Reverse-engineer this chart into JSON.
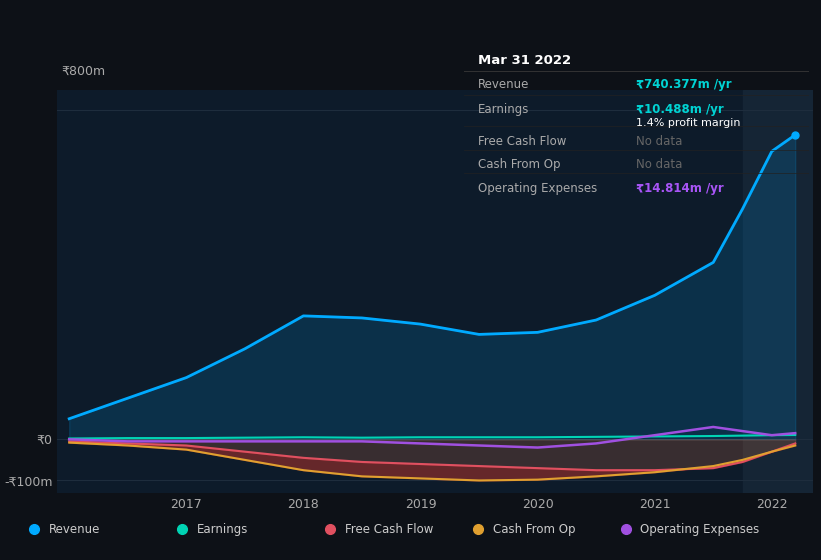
{
  "background_color": "#0d1117",
  "plot_bg_color": "#0d1b2a",
  "grid_color": "#1e2d3d",
  "title_box": {
    "date": "Mar 31 2022",
    "rows": [
      {
        "label": "Revenue",
        "value": "₹740.377m /yr",
        "value_color": "#00d4d4",
        "note": null
      },
      {
        "label": "Earnings",
        "value": "₹10.488m /yr",
        "value_color": "#00d4d4",
        "note": "1.4% profit margin"
      },
      {
        "label": "Free Cash Flow",
        "value": "No data",
        "value_color": "#666666",
        "note": null
      },
      {
        "label": "Cash From Op",
        "value": "No data",
        "value_color": "#666666",
        "note": null
      },
      {
        "label": "Operating Expenses",
        "value": "₹14.814m /yr",
        "value_color": "#a855f7",
        "note": null
      }
    ]
  },
  "x_years": [
    2016.0,
    2016.5,
    2017.0,
    2017.5,
    2018.0,
    2018.5,
    2019.0,
    2019.5,
    2020.0,
    2020.5,
    2021.0,
    2021.5,
    2021.75,
    2022.0,
    2022.2
  ],
  "revenue": [
    50,
    100,
    150,
    220,
    300,
    295,
    280,
    255,
    260,
    290,
    350,
    430,
    560,
    700,
    740
  ],
  "earnings": [
    2,
    3,
    3,
    4,
    5,
    4,
    5,
    5,
    5,
    6,
    7,
    8,
    9,
    10,
    10.5
  ],
  "free_cash_flow": [
    -5,
    -10,
    -15,
    -30,
    -45,
    -55,
    -60,
    -65,
    -70,
    -75,
    -75,
    -70,
    -55,
    -30,
    -10
  ],
  "cash_from_op": [
    -8,
    -15,
    -25,
    -50,
    -75,
    -90,
    -95,
    -100,
    -98,
    -90,
    -80,
    -65,
    -50,
    -30,
    -15
  ],
  "operating_expenses": [
    0,
    -5,
    -5,
    -5,
    -5,
    -5,
    -10,
    -15,
    -20,
    -10,
    10,
    30,
    20,
    10,
    15
  ],
  "revenue_color": "#00aaff",
  "earnings_color": "#00d4b4",
  "free_cash_flow_color": "#e05060",
  "cash_from_op_color": "#e0a030",
  "operating_expenses_color": "#a050e0",
  "ylim": [
    -130,
    850
  ],
  "ytick_labels": [
    "-₹100m",
    "₹0",
    "₹800m"
  ],
  "ytick_values": [
    -100,
    0,
    800
  ],
  "xtick_years": [
    2017,
    2018,
    2019,
    2020,
    2021,
    2022
  ],
  "legend_items": [
    {
      "label": "Revenue",
      "color": "#00aaff"
    },
    {
      "label": "Earnings",
      "color": "#00d4b4"
    },
    {
      "label": "Free Cash Flow",
      "color": "#e05060"
    },
    {
      "label": "Cash From Op",
      "color": "#e0a030"
    },
    {
      "label": "Operating Expenses",
      "color": "#a050e0"
    }
  ]
}
